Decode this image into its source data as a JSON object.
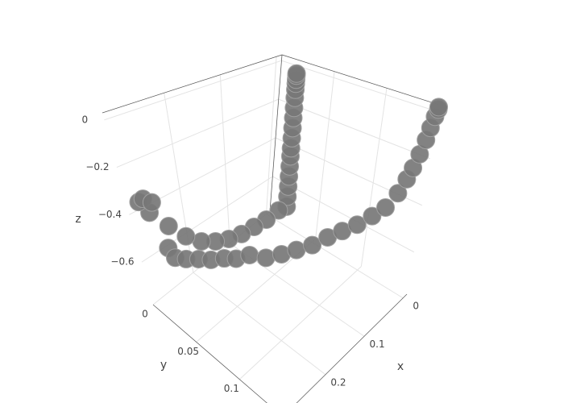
{
  "chart_data": {
    "type": "scatter3d",
    "xaxis_title": "x",
    "yaxis_title": "y",
    "zaxis_title": "z",
    "xlim": [
      -0.01,
      0.31
    ],
    "ylim": [
      0,
      0.15
    ],
    "zlim": [
      -0.78,
      0.03
    ],
    "xticks": [
      0,
      0.1,
      0.2
    ],
    "yticks": [
      0,
      0.05,
      0.1
    ],
    "zticks": [
      0,
      {
        "value": -0.2,
        "label": "−0.2"
      },
      {
        "value": -0.4,
        "label": "−0.4"
      },
      {
        "value": -0.6,
        "label": "−0.6"
      }
    ],
    "grid": true,
    "series": [
      {
        "color": "#777777",
        "x": [
          0.006,
          0.006,
          0.006,
          0.006,
          0.006,
          0.006,
          0.006,
          0.006,
          0.006,
          0.006,
          0.006,
          0.006,
          0.006,
          0.006,
          0.006,
          0.006,
          0.006,
          0.006,
          0.038,
          0.07,
          0.102,
          0.134,
          0.166,
          0.198,
          0.23,
          0.262,
          0.294,
          0.31,
          0.307,
          0.3,
          0.31,
          0.3,
          0.278,
          0.252,
          0.227,
          0.201,
          0.176,
          0.15,
          0.128,
          0.112,
          0.096,
          0.083,
          0.07,
          0.057,
          0.044,
          0.032,
          0.022,
          0.012,
          0.006,
          0.003,
          0.0,
          -0.004,
          -0.007,
          -0.008,
          -0.01,
          -0.01
        ],
        "y": [
          0.023,
          0.023,
          0.023,
          0.023,
          0.023,
          0.023,
          0.023,
          0.023,
          0.023,
          0.023,
          0.023,
          0.023,
          0.023,
          0.023,
          0.023,
          0.023,
          0.023,
          0.015,
          0.015,
          0.015,
          0.015,
          0.015,
          0.015,
          0.015,
          0.015,
          0.015,
          0.015,
          0.015,
          0.019,
          0.024,
          0.038,
          0.038,
          0.038,
          0.038,
          0.039,
          0.041,
          0.042,
          0.045,
          0.053,
          0.063,
          0.072,
          0.083,
          0.093,
          0.102,
          0.111,
          0.12,
          0.128,
          0.134,
          0.138,
          0.141,
          0.144,
          0.146,
          0.147,
          0.149,
          0.15,
          0.15
        ],
        "z": [
          -0.67,
          -0.62,
          -0.57,
          -0.52,
          -0.47,
          -0.42,
          -0.38,
          -0.33,
          -0.28,
          -0.23,
          -0.18,
          -0.13,
          -0.09,
          -0.06,
          -0.04,
          -0.02,
          -0.01,
          -0.71,
          -0.71,
          -0.7,
          -0.69,
          -0.67,
          -0.64,
          -0.6,
          -0.54,
          -0.46,
          -0.37,
          -0.31,
          -0.29,
          -0.3,
          -0.44,
          -0.49,
          -0.52,
          -0.55,
          -0.58,
          -0.6,
          -0.63,
          -0.64,
          -0.66,
          -0.64,
          -0.62,
          -0.59,
          -0.55,
          -0.52,
          -0.49,
          -0.45,
          -0.41,
          -0.35,
          -0.29,
          -0.24,
          -0.18,
          -0.12,
          -0.07,
          -0.02,
          0.01,
          0.02
        ]
      }
    ]
  }
}
